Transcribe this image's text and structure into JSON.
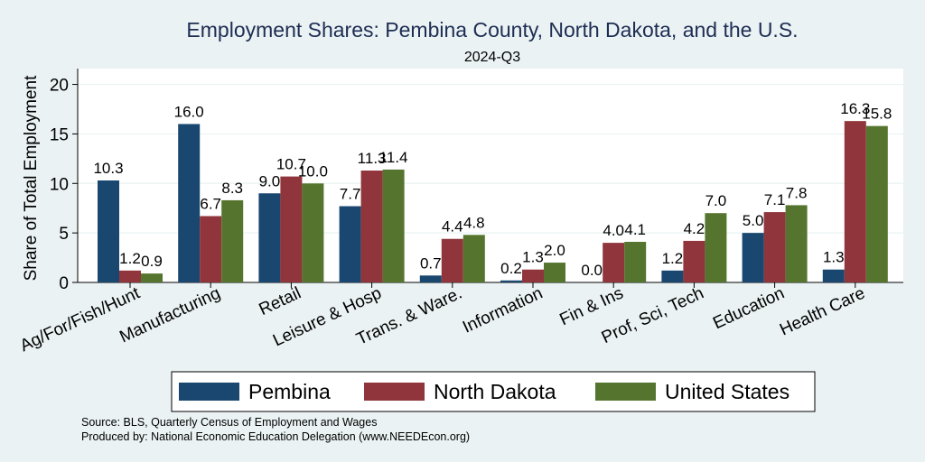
{
  "chart_data": {
    "type": "bar",
    "title": "Employment Shares: Pembina County, North Dakota, and the U.S.",
    "subtitle": "2024-Q3",
    "xlabel": "",
    "ylabel": "Share of Total Employment",
    "ylim": [
      0,
      21.6
    ],
    "yticks": [
      0,
      5,
      10,
      15,
      20
    ],
    "grid": true,
    "legend_position": "bottom",
    "categories": [
      "Ag/For/Fish/Hunt",
      "Manufacturing",
      "Retail",
      "Leisure & Hosp",
      "Trans. & Ware.",
      "Information",
      "Fin & Ins",
      "Prof, Sci, Tech",
      "Education",
      "Health Care"
    ],
    "series": [
      {
        "name": "Pembina",
        "color": "#1a476f",
        "values": [
          10.3,
          16.0,
          9.0,
          7.7,
          0.7,
          0.2,
          0.0,
          1.2,
          5.0,
          1.3
        ]
      },
      {
        "name": "North Dakota",
        "color": "#90353b",
        "values": [
          1.2,
          6.7,
          10.7,
          11.3,
          4.4,
          1.3,
          4.0,
          4.2,
          7.1,
          16.3
        ]
      },
      {
        "name": "United States",
        "color": "#55752f",
        "values": [
          0.9,
          8.3,
          10.0,
          11.4,
          4.8,
          2.0,
          4.1,
          7.0,
          7.8,
          15.8
        ]
      }
    ]
  },
  "notes": {
    "source": "Source: BLS, Quarterly Census of Employment and Wages",
    "produced_by": "Produced by: National Economic Education Delegation (www.NEEDEcon.org)"
  }
}
